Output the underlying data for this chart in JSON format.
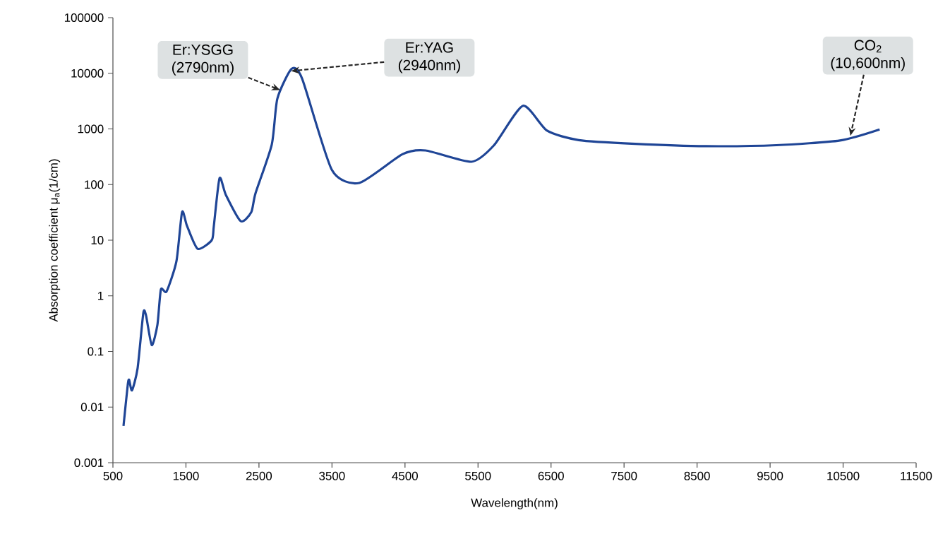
{
  "chart_data": {
    "type": "line",
    "xlabel": "Wavelength(nm)",
    "ylabel": "Absorption coefficient μ$_{a}$(1/cm)",
    "x": [
      645,
      703,
      722,
      761,
      838,
      916,
      954,
      1032,
      1109,
      1157,
      1235,
      1370,
      1447,
      1515,
      1660,
      1853,
      1882,
      1960,
      2047,
      2250,
      2395,
      2453,
      2675,
      2752,
      2946,
      3091,
      3497,
      3874,
      4463,
      4782,
      5411,
      5720,
      6116,
      6445,
      6880,
      7653,
      8620,
      9587,
      10457,
      11000
    ],
    "series": [
      {
        "color": "#1f4596",
        "values": [
          0.0046,
          0.025,
          0.031,
          0.02,
          0.05,
          0.49,
          0.44,
          0.13,
          0.3,
          1.3,
          1.2,
          4.2,
          32,
          18,
          7,
          10,
          18,
          130,
          65,
          22,
          32,
          70,
          520,
          3500,
          12000,
          8000,
          185,
          107,
          350,
          410,
          257,
          510,
          2600,
          930,
          630,
          540,
          490,
          510,
          620,
          980
        ]
      }
    ],
    "log": "y",
    "xlim": [
      500,
      11500
    ],
    "xticks": [
      500,
      1500,
      2500,
      3500,
      4500,
      5500,
      6500,
      7500,
      8500,
      9500,
      10500,
      11500
    ],
    "ylim": [
      0.001,
      100000
    ],
    "yticks": [
      0.001,
      0.01,
      0.1,
      1,
      10,
      100,
      1000,
      10000,
      100000
    ],
    "grid": false,
    "marker": "none",
    "line_style": "solid",
    "annotations": [
      {
        "text": "Er:YSGG (2790nm)",
        "x": 2790,
        "y": 5000
      },
      {
        "text": "Er:YAG (2940nm)",
        "x": 2940,
        "y": 11000
      },
      {
        "text": "CO$_{2}$ (10,600nm)",
        "x": 10600,
        "y": 750
      }
    ]
  }
}
